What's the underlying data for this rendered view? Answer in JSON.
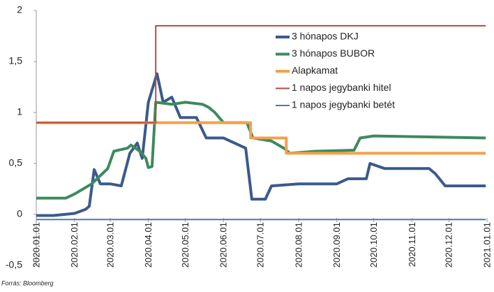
{
  "chart_data": {
    "type": "line",
    "xlim": [
      "2020.01.01",
      "2021.01.01"
    ],
    "xticks": [
      "2020.01.01",
      "2020.02.01",
      "2020.03.01",
      "2020.04.01",
      "2020.05.01",
      "2020.06.01",
      "2020.07.01",
      "2020.08.01",
      "2020.09.01",
      "2020.10.01",
      "2020.11.01",
      "2020.12.01",
      "2021.01.01"
    ],
    "ylim": [
      -0.5,
      2
    ],
    "yticks": [
      {
        "value": -0.5,
        "label": "-0,5"
      },
      0,
      {
        "value": 0.5,
        "label": "0,5"
      },
      1,
      {
        "value": 1.5,
        "label": "1,5"
      },
      2
    ],
    "legend": "upper right",
    "source": "Forrás: Bloomberg",
    "series": [
      {
        "name": "3 hónapos DKJ",
        "color": "#3a5a8c",
        "width": 4,
        "x": [
          "2020.01.01",
          "2020.01.15",
          "2020.02.01",
          "2020.02.10",
          "2020.02.13",
          "2020.02.17",
          "2020.02.22",
          "2020.03.01",
          "2020.03.10",
          "2020.03.17",
          "2020.03.23",
          "2020.03.27",
          "2020.04.01",
          "2020.04.08",
          "2020.04.13",
          "2020.04.20",
          "2020.04.27",
          "2020.05.10",
          "2020.05.18",
          "2020.06.01",
          "2020.06.10",
          "2020.06.19",
          "2020.06.24",
          "2020.07.05",
          "2020.07.10",
          "2020.08.01",
          "2020.09.01",
          "2020.09.10",
          "2020.09.25",
          "2020.09.28",
          "2020.10.10",
          "2020.11.15",
          "2020.11.20",
          "2020.11.28",
          "2020.12.31"
        ],
        "values": [
          -0.01,
          -0.01,
          0.01,
          0.05,
          0.08,
          0.44,
          0.3,
          0.3,
          0.28,
          0.6,
          0.7,
          0.55,
          1.1,
          1.38,
          1.1,
          1.15,
          0.95,
          0.95,
          0.75,
          0.75,
          0.7,
          0.65,
          0.15,
          0.15,
          0.28,
          0.3,
          0.3,
          0.35,
          0.35,
          0.5,
          0.45,
          0.45,
          0.4,
          0.28,
          0.28
        ]
      },
      {
        "name": "3 hónapos BUBOR",
        "color": "#3c8a5c",
        "width": 4,
        "x": [
          "2020.01.01",
          "2020.01.25",
          "2020.02.01",
          "2020.02.15",
          "2020.02.28",
          "2020.03.04",
          "2020.03.15",
          "2020.03.18",
          "2020.03.25",
          "2020.03.30",
          "2020.04.01",
          "2020.04.04",
          "2020.04.07",
          "2020.04.20",
          "2020.05.01",
          "2020.05.15",
          "2020.05.20",
          "2020.05.25",
          "2020.06.01",
          "2020.06.20",
          "2020.06.25",
          "2020.07.10",
          "2020.07.20",
          "2020.07.25",
          "2020.08.15",
          "2020.09.15",
          "2020.09.20",
          "2020.10.01",
          "2020.11.15",
          "2020.12.31"
        ],
        "values": [
          0.16,
          0.16,
          0.2,
          0.3,
          0.45,
          0.62,
          0.65,
          0.68,
          0.62,
          0.55,
          0.46,
          0.47,
          1.1,
          1.08,
          1.1,
          1.08,
          1.05,
          1.0,
          0.9,
          0.9,
          0.75,
          0.72,
          0.65,
          0.6,
          0.62,
          0.63,
          0.75,
          0.77,
          0.76,
          0.75
        ]
      },
      {
        "name": "Alapkamat",
        "color": "#f5a04a",
        "width": 4,
        "x": [
          "2020.01.01",
          "2020.06.23",
          "2020.06.23",
          "2020.07.22",
          "2020.07.22",
          "2020.12.31"
        ],
        "values": [
          0.9,
          0.9,
          0.75,
          0.75,
          0.6,
          0.6
        ]
      },
      {
        "name": "1 napos jegybanki hitel",
        "color": "#b84a3c",
        "width": 2,
        "x": [
          "2020.01.01",
          "2020.04.07",
          "2020.04.07",
          "2020.12.31"
        ],
        "values": [
          0.9,
          0.9,
          1.85,
          1.85
        ]
      },
      {
        "name": "1 napos jegybanki betét",
        "color": "#4a78b8",
        "width": 2,
        "x": [
          "2020.01.01",
          "2020.12.31"
        ],
        "values": [
          -0.05,
          -0.05
        ]
      }
    ]
  }
}
